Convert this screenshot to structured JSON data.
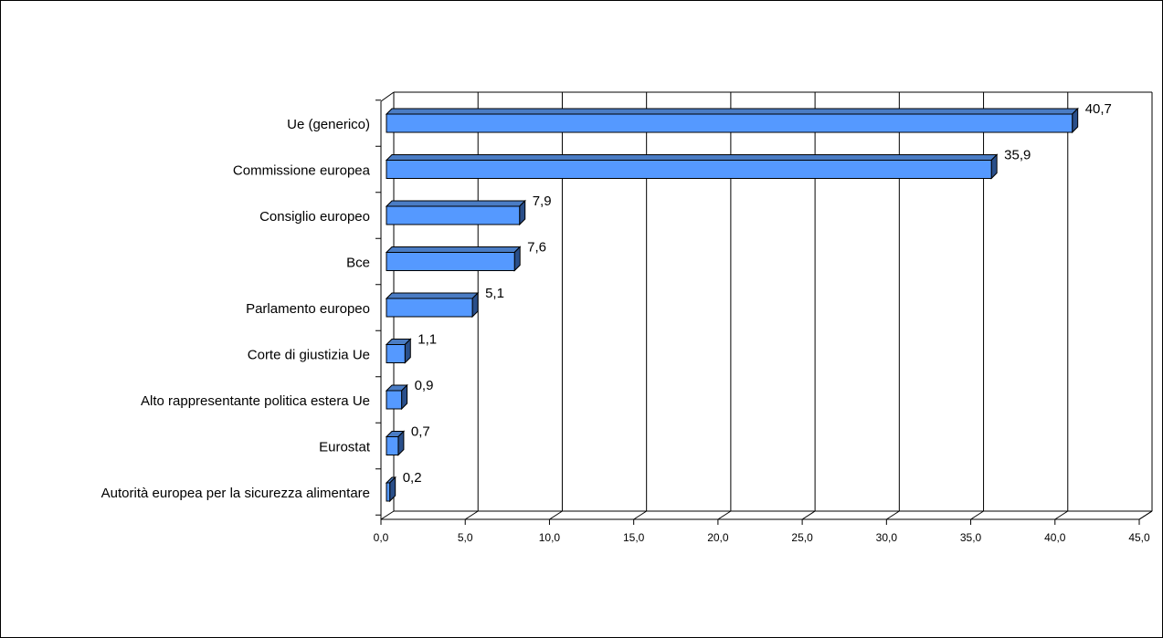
{
  "chart_data": {
    "type": "bar",
    "orientation": "horizontal",
    "style": "3d",
    "categories": [
      "Ue (generico)",
      "Commissione europea",
      "Consiglio europeo",
      "Bce",
      "Parlamento europeo",
      "Corte di giustizia Ue",
      "Alto rappresentante politica estera Ue",
      "Eurostat",
      "Autorità europea per la sicurezza alimentare"
    ],
    "values": [
      40.7,
      35.9,
      7.9,
      7.6,
      5.1,
      1.1,
      0.9,
      0.7,
      0.2
    ],
    "value_labels": [
      "40,7",
      "35,9",
      "7,9",
      "7,6",
      "5,1",
      "1,1",
      "0,9",
      "0,7",
      "0,2"
    ],
    "xlim": [
      0,
      45
    ],
    "x_ticks": [
      0,
      5,
      10,
      15,
      20,
      25,
      30,
      35,
      40,
      45
    ],
    "x_tick_labels": [
      "0,0",
      "5,0",
      "10,0",
      "15,0",
      "20,0",
      "25,0",
      "30,0",
      "35,0",
      "40,0",
      "45,0"
    ],
    "grid": "vertical",
    "legend": "none",
    "bar_color": "#5599ff",
    "bar_top_color": "#4a7cc4",
    "bar_side_color": "#2a4f8a",
    "title": "",
    "xlabel": "",
    "ylabel": ""
  }
}
